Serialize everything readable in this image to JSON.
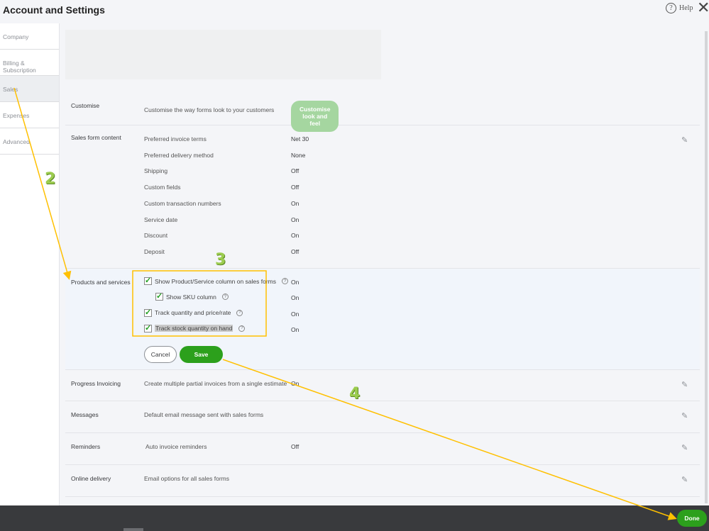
{
  "header": {
    "title": "Account and Settings",
    "help_label": "Help",
    "help_icon": "question-circle-icon",
    "close_icon": "close-icon"
  },
  "sidebar": {
    "items": [
      {
        "label": "Company"
      },
      {
        "label": "Billing & Subscription"
      },
      {
        "label": "Sales",
        "active": true
      },
      {
        "label": "Expenses"
      },
      {
        "label": "Advanced"
      }
    ]
  },
  "customise": {
    "label": "Customise",
    "desc": "Customise the way forms look to your customers",
    "button": "Customise look and feel"
  },
  "sales_form": {
    "label": "Sales form content",
    "items": [
      {
        "name": "Preferred invoice terms",
        "value": "Net 30"
      },
      {
        "name": "Preferred delivery method",
        "value": "None"
      },
      {
        "name": "Shipping",
        "value": "Off"
      },
      {
        "name": "Custom fields",
        "value": "Off"
      },
      {
        "name": "Custom transaction numbers",
        "value": "On"
      },
      {
        "name": "Service date",
        "value": "On"
      },
      {
        "name": "Discount",
        "value": "On"
      },
      {
        "name": "Deposit",
        "value": "Off"
      }
    ]
  },
  "products": {
    "label": "Products and services",
    "options": [
      {
        "label": "Show Product/Service column on sales forms",
        "checked": true,
        "value": "On"
      },
      {
        "label": "Show SKU column",
        "checked": true,
        "value": "On"
      },
      {
        "label": "Track quantity and price/rate",
        "checked": true,
        "value": "On"
      },
      {
        "label": "Track stock quantity on hand",
        "checked": true,
        "value": "On"
      }
    ],
    "cancel": "Cancel",
    "save": "Save"
  },
  "other_rows": [
    {
      "label": "Progress Invoicing",
      "desc": "Create multiple partial invoices from a single estimate",
      "value": "On"
    },
    {
      "label": "Messages",
      "desc": "Default email message sent with sales forms",
      "value": ""
    },
    {
      "label": "Reminders",
      "desc": "Auto invoice reminders",
      "value": "Off"
    },
    {
      "label": "Online delivery",
      "desc": "Email options for all sales forms",
      "value": ""
    }
  ],
  "footer": {
    "done": "Done"
  },
  "annotations": {
    "step2": "2",
    "step3": "3",
    "step4": "4",
    "arrow_color": "#ffc000",
    "number_color": "#9ccc4f"
  },
  "colors": {
    "primary_green": "#2ca01c",
    "disabled_green": "#a5d6a0",
    "footer": "#393a3d"
  }
}
